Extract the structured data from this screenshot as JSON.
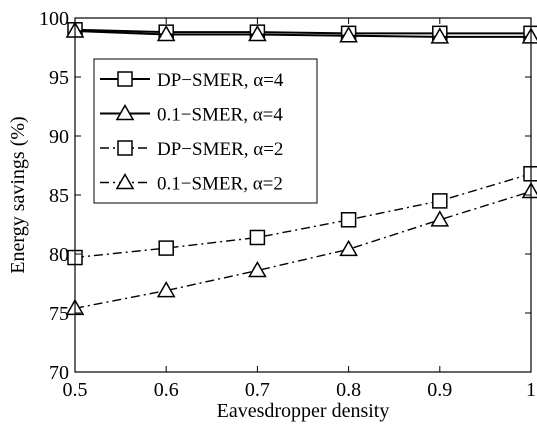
{
  "chart_data": {
    "type": "line",
    "title": "",
    "xlabel": "Eavesdropper density",
    "ylabel": "Energy savings (%)",
    "xlim": [
      0.5,
      1
    ],
    "ylim": [
      70,
      100
    ],
    "x_ticks": [
      0.5,
      0.6,
      0.7,
      0.8,
      0.9,
      1
    ],
    "x_tick_labels": [
      "0.5",
      "0.6",
      "0.7",
      "0.8",
      "0.9",
      "1"
    ],
    "y_ticks": [
      70,
      75,
      80,
      85,
      90,
      95,
      100
    ],
    "y_tick_labels": [
      "70",
      "75",
      "80",
      "85",
      "90",
      "95",
      "100"
    ],
    "grid": false,
    "legend_position": "upper-left",
    "x": [
      0.5,
      0.6,
      0.7,
      0.8,
      0.9,
      1
    ],
    "series": [
      {
        "name": "DP−SMER, α=4",
        "marker": "square",
        "line": "solid",
        "values": [
          99.0,
          98.8,
          98.8,
          98.7,
          98.7,
          98.7
        ]
      },
      {
        "name": "0.1−SMER, α=4",
        "marker": "triangle",
        "line": "solid",
        "values": [
          98.9,
          98.6,
          98.6,
          98.5,
          98.4,
          98.4
        ]
      },
      {
        "name": "DP−SMER, α=2",
        "marker": "square",
        "line": "dashdot",
        "values": [
          79.7,
          80.5,
          81.4,
          82.9,
          84.5,
          86.8
        ]
      },
      {
        "name": "0.1−SMER, α=2",
        "marker": "triangle",
        "line": "dashdot",
        "values": [
          75.4,
          76.9,
          78.6,
          80.4,
          82.9,
          85.3
        ]
      }
    ]
  }
}
